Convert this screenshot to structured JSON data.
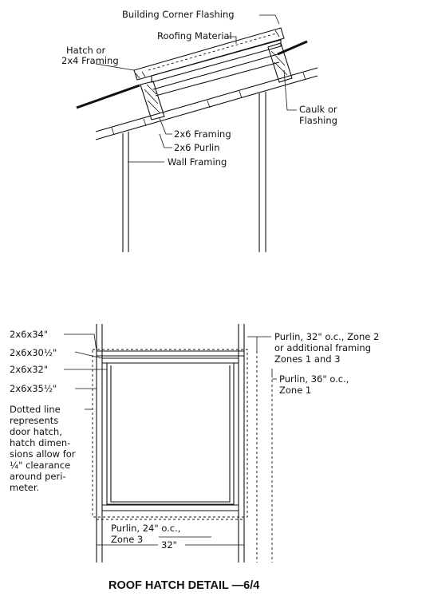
{
  "top_detail": {
    "labels": {
      "building_corner_flashing": "Building Corner Flashing",
      "roofing_material": "Roofing Material",
      "hatch_or_line1": "Hatch or",
      "hatch_or_line2": "2x4 Framing",
      "caulk_line1": "Caulk or",
      "caulk_line2": "Flashing",
      "framing_2x6": "2x6 Framing",
      "purlin_2x6": "2x6 Purlin",
      "wall_framing": "Wall Framing"
    }
  },
  "plan_detail": {
    "left_labels": {
      "l1": "2x6x34\"",
      "l2": "2x6x30½\"",
      "l3": "2x6x32\"",
      "l4": "2x6x35½\"",
      "note1": "Dotted line",
      "note2": "represents",
      "note3": "door hatch,",
      "note4": "hatch dimen-",
      "note5": "sions allow for",
      "note6": "¼\" clearance",
      "note7": "around peri-",
      "note8": "meter."
    },
    "right_labels": {
      "r1a": "Purlin, 32\" o.c., Zone 2",
      "r1b": "or additional framing",
      "r1c": "Zones 1 and 3",
      "r2a": "Purlin, 36\" o.c.,",
      "r2b": "Zone 1"
    },
    "bottom_labels": {
      "b1a": "Purlin, 24\" o.c.,",
      "b1b": "Zone 3",
      "width": "32\""
    }
  },
  "caption": "ROOF HATCH DETAIL —6/4"
}
